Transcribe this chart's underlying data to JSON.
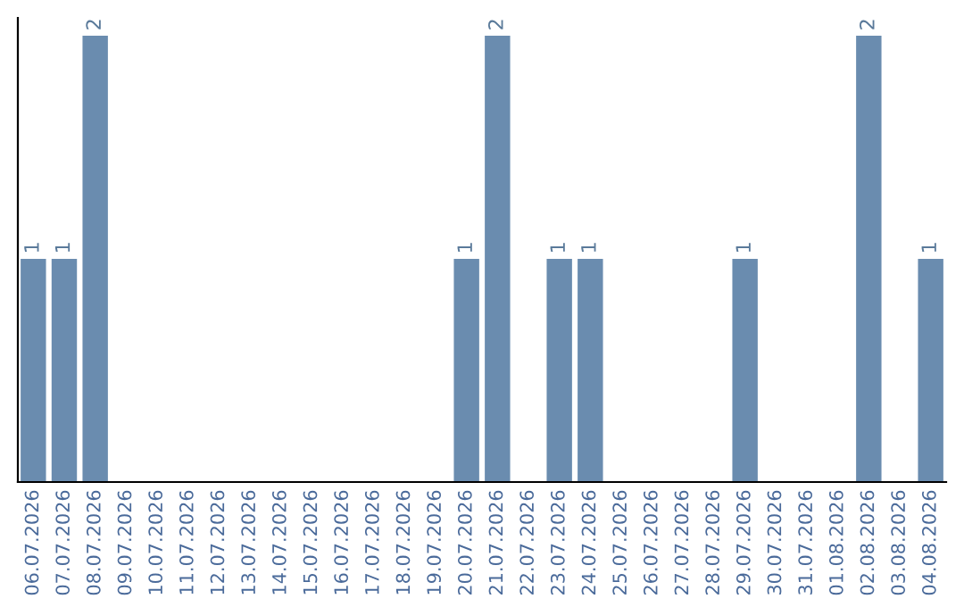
{
  "chart_data": {
    "type": "bar",
    "categories": [
      "06.07.2026",
      "07.07.2026",
      "08.07.2026",
      "09.07.2026",
      "10.07.2026",
      "11.07.2026",
      "12.07.2026",
      "13.07.2026",
      "14.07.2026",
      "15.07.2026",
      "16.07.2026",
      "17.07.2026",
      "18.07.2026",
      "19.07.2026",
      "20.07.2026",
      "21.07.2026",
      "22.07.2026",
      "23.07.2026",
      "24.07.2026",
      "25.07.2026",
      "26.07.2026",
      "27.07.2026",
      "28.07.2026",
      "29.07.2026",
      "30.07.2026",
      "31.07.2026",
      "01.08.2026",
      "02.08.2026",
      "03.08.2026",
      "04.08.2026"
    ],
    "values": [
      1,
      1,
      2,
      0,
      0,
      0,
      0,
      0,
      0,
      0,
      0,
      0,
      0,
      0,
      1,
      2,
      0,
      1,
      1,
      0,
      0,
      0,
      0,
      1,
      0,
      0,
      0,
      2,
      0,
      1
    ],
    "value_labels": [
      "1",
      "1",
      "2",
      null,
      null,
      null,
      null,
      null,
      null,
      null,
      null,
      null,
      null,
      null,
      "1",
      "2",
      null,
      "1",
      "1",
      null,
      null,
      null,
      null,
      "1",
      null,
      null,
      null,
      "2",
      null,
      "1"
    ],
    "color": "#6a8caf",
    "grid": false,
    "legend": false
  }
}
